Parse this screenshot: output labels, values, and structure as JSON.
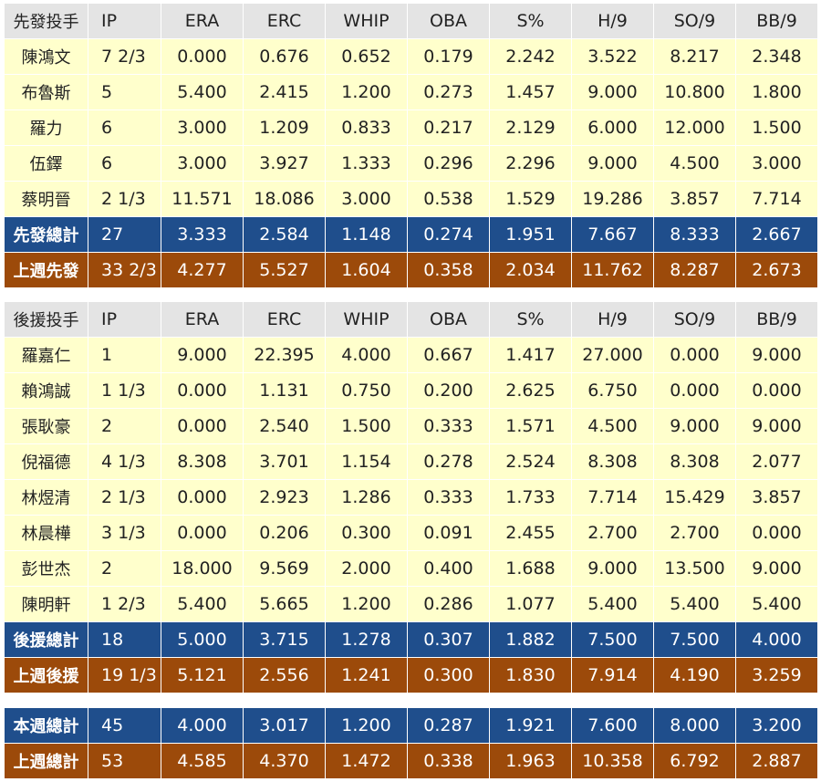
{
  "columns": [
    "IP",
    "ERA",
    "ERC",
    "WHIP",
    "OBA",
    "S%",
    "H/9",
    "SO/9",
    "BB/9"
  ],
  "starters": {
    "header_label": "先發投手",
    "players": [
      {
        "name": "陳鴻文",
        "stats": [
          "7 2/3",
          "0.000",
          "0.676",
          "0.652",
          "0.179",
          "2.242",
          "3.522",
          "8.217",
          "2.348"
        ]
      },
      {
        "name": "布魯斯",
        "stats": [
          "5",
          "5.400",
          "2.415",
          "1.200",
          "0.273",
          "1.457",
          "9.000",
          "10.800",
          "1.800"
        ]
      },
      {
        "name": "羅力",
        "stats": [
          "6",
          "3.000",
          "1.209",
          "0.833",
          "0.217",
          "2.129",
          "6.000",
          "12.000",
          "1.500"
        ]
      },
      {
        "name": "伍鐸",
        "stats": [
          "6",
          "3.000",
          "3.927",
          "1.333",
          "0.296",
          "2.296",
          "9.000",
          "4.500",
          "3.000"
        ]
      },
      {
        "name": "蔡明晉",
        "stats": [
          "2 1/3",
          "11.571",
          "18.086",
          "3.000",
          "0.538",
          "1.529",
          "19.286",
          "3.857",
          "7.714"
        ]
      }
    ],
    "total": {
      "name": "先發總計",
      "stats": [
        "27",
        "3.333",
        "2.584",
        "1.148",
        "0.274",
        "1.951",
        "7.667",
        "8.333",
        "2.667"
      ]
    },
    "last_week": {
      "name": "上週先發",
      "stats": [
        "33 2/3",
        "4.277",
        "5.527",
        "1.604",
        "0.358",
        "2.034",
        "11.762",
        "8.287",
        "2.673"
      ]
    }
  },
  "relievers": {
    "header_label": "後援投手",
    "players": [
      {
        "name": "羅嘉仁",
        "stats": [
          "1",
          "9.000",
          "22.395",
          "4.000",
          "0.667",
          "1.417",
          "27.000",
          "0.000",
          "9.000"
        ]
      },
      {
        "name": "賴鴻誠",
        "stats": [
          "1 1/3",
          "0.000",
          "1.131",
          "0.750",
          "0.200",
          "2.625",
          "6.750",
          "0.000",
          "0.000"
        ]
      },
      {
        "name": "張耿豪",
        "stats": [
          "2",
          "0.000",
          "2.540",
          "1.500",
          "0.333",
          "1.571",
          "4.500",
          "9.000",
          "9.000"
        ]
      },
      {
        "name": "倪福德",
        "stats": [
          "4 1/3",
          "8.308",
          "3.701",
          "1.154",
          "0.278",
          "2.524",
          "8.308",
          "8.308",
          "2.077"
        ]
      },
      {
        "name": "林煜清",
        "stats": [
          "2 1/3",
          "0.000",
          "2.923",
          "1.286",
          "0.333",
          "1.733",
          "7.714",
          "15.429",
          "3.857"
        ]
      },
      {
        "name": "林晨樺",
        "stats": [
          "3 1/3",
          "0.000",
          "0.206",
          "0.300",
          "0.091",
          "2.455",
          "2.700",
          "2.700",
          "0.000"
        ]
      },
      {
        "name": "彭世杰",
        "stats": [
          "2",
          "18.000",
          "9.569",
          "2.000",
          "0.400",
          "1.688",
          "9.000",
          "13.500",
          "9.000"
        ]
      },
      {
        "name": "陳明軒",
        "stats": [
          "1 2/3",
          "5.400",
          "5.665",
          "1.200",
          "0.286",
          "1.077",
          "5.400",
          "5.400",
          "5.400"
        ]
      }
    ],
    "total": {
      "name": "後援總計",
      "stats": [
        "18",
        "5.000",
        "3.715",
        "1.278",
        "0.307",
        "1.882",
        "7.500",
        "7.500",
        "4.000"
      ]
    },
    "last_week": {
      "name": "上週後援",
      "stats": [
        "19 1/3",
        "5.121",
        "2.556",
        "1.241",
        "0.300",
        "1.830",
        "7.914",
        "4.190",
        "3.259"
      ]
    }
  },
  "summary": {
    "this_week": {
      "name": "本週總計",
      "stats": [
        "45",
        "4.000",
        "3.017",
        "1.200",
        "0.287",
        "1.921",
        "7.600",
        "8.000",
        "3.200"
      ]
    },
    "last_week": {
      "name": "上週總計",
      "stats": [
        "53",
        "4.585",
        "4.370",
        "1.472",
        "0.338",
        "1.963",
        "10.358",
        "6.792",
        "2.887"
      ]
    }
  },
  "colors": {
    "header_bg": "#e4e4e4",
    "player_bg": "#ffffcc",
    "total_bg": "#1f4e8c",
    "last_week_bg": "#9c4a0a"
  }
}
